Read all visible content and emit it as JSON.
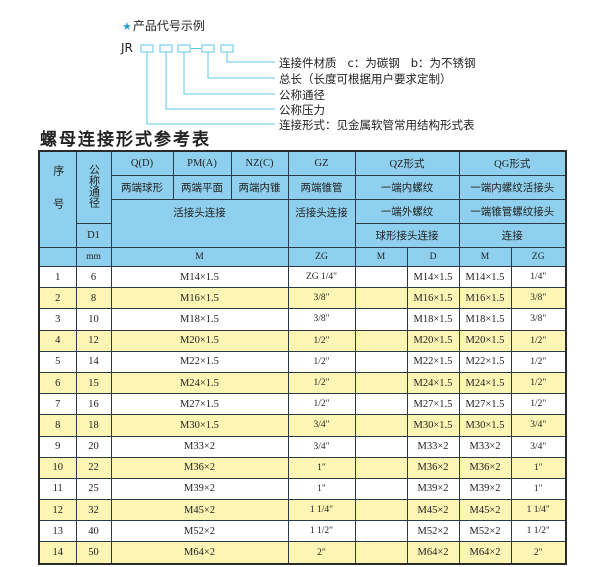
{
  "code_example": {
    "title": "产品代号示例",
    "prefix": "JR",
    "notes": [
      "连接件材质   c：为碳钢   b：为不锈钢",
      "总长（长度可根据用户要求定制）",
      "公称通径",
      "公称压力",
      "连接形式：见金属软管常用结构形式表"
    ],
    "accent_color": "#5cc4e8"
  },
  "table_title": "螺母连接形式参考表",
  "header": {
    "seq": "序号",
    "dn": "公称通径",
    "d1": "D1",
    "mm": "mm",
    "qd": "Q(D)",
    "pm": "PM(A)",
    "nz": "NZ(C)",
    "gz": "GZ",
    "qz": "QZ形式",
    "qg": "QG形式",
    "qd_desc": "两端球形",
    "pm_desc": "两端平面",
    "nz_desc": "两端内锥",
    "gz_desc": "两端锥管",
    "qz_desc1": "一端内螺纹",
    "qg_desc1": "一端内螺纹活接头",
    "union_desc": "活接头连接",
    "gz_desc2": "活接头连接",
    "qz_desc2": "一端外螺纹",
    "qg_desc2": "一端锥管螺纹接头",
    "qz_desc3": "球形接头连接",
    "qg_desc3": "连接",
    "col_m": "M",
    "col_zg": "ZG",
    "qz_m": "M",
    "qz_d": "D",
    "qg_m": "M",
    "qg_zg": "ZG"
  },
  "header_color": "#8fd0ee",
  "stripe_color": "#fdf5b4",
  "rows": [
    {
      "seq": "1",
      "dn": "6",
      "m": "M14×1.5",
      "zg": "ZG 1/4\"",
      "qz_m": "",
      "qz_d": "M14×1.5",
      "qg_m": "M14×1.5",
      "qg_zg": "1/4\""
    },
    {
      "seq": "2",
      "dn": "8",
      "m": "M16×1.5",
      "zg": "3/8\"",
      "qz_m": "",
      "qz_d": "M16×1.5",
      "qg_m": "M16×1.5",
      "qg_zg": "3/8\""
    },
    {
      "seq": "3",
      "dn": "10",
      "m": "M18×1.5",
      "zg": "3/8\"",
      "qz_m": "",
      "qz_d": "M18×1.5",
      "qg_m": "M18×1.5",
      "qg_zg": "3/8\""
    },
    {
      "seq": "4",
      "dn": "12",
      "m": "M20×1.5",
      "zg": "1/2\"",
      "qz_m": "",
      "qz_d": "M20×1.5",
      "qg_m": "M20×1.5",
      "qg_zg": "1/2\""
    },
    {
      "seq": "5",
      "dn": "14",
      "m": "M22×1.5",
      "zg": "1/2\"",
      "qz_m": "",
      "qz_d": "M22×1.5",
      "qg_m": "M22×1.5",
      "qg_zg": "1/2\""
    },
    {
      "seq": "6",
      "dn": "15",
      "m": "M24×1.5",
      "zg": "1/2\"",
      "qz_m": "",
      "qz_d": "M24×1.5",
      "qg_m": "M24×1.5",
      "qg_zg": "1/2\""
    },
    {
      "seq": "7",
      "dn": "16",
      "m": "M27×1.5",
      "zg": "1/2\"",
      "qz_m": "",
      "qz_d": "M27×1.5",
      "qg_m": "M27×1.5",
      "qg_zg": "1/2\""
    },
    {
      "seq": "8",
      "dn": "18",
      "m": "M30×1.5",
      "zg": "3/4\"",
      "qz_m": "",
      "qz_d": "M30×1.5",
      "qg_m": "M30×1.5",
      "qg_zg": "3/4\""
    },
    {
      "seq": "9",
      "dn": "20",
      "m": "M33×2",
      "zg": "3/4\"",
      "qz_m": "",
      "qz_d": "M33×2",
      "qg_m": "M33×2",
      "qg_zg": "3/4\""
    },
    {
      "seq": "10",
      "dn": "22",
      "m": "M36×2",
      "zg": "1\"",
      "qz_m": "",
      "qz_d": "M36×2",
      "qg_m": "M36×2",
      "qg_zg": "1\""
    },
    {
      "seq": "11",
      "dn": "25",
      "m": "M39×2",
      "zg": "1\"",
      "qz_m": "",
      "qz_d": "M39×2",
      "qg_m": "M39×2",
      "qg_zg": "1\""
    },
    {
      "seq": "12",
      "dn": "32",
      "m": "M45×2",
      "zg": "1 1/4\"",
      "qz_m": "",
      "qz_d": "M45×2",
      "qg_m": "M45×2",
      "qg_zg": "1 1/4\""
    },
    {
      "seq": "13",
      "dn": "40",
      "m": "M52×2",
      "zg": "1 1/2\"",
      "qz_m": "",
      "qz_d": "M52×2",
      "qg_m": "M52×2",
      "qg_zg": "1 1/2\""
    },
    {
      "seq": "14",
      "dn": "50",
      "m": "M64×2",
      "zg": "2\"",
      "qz_m": "",
      "qz_d": "M64×2",
      "qg_m": "M64×2",
      "qg_zg": "2\""
    }
  ]
}
